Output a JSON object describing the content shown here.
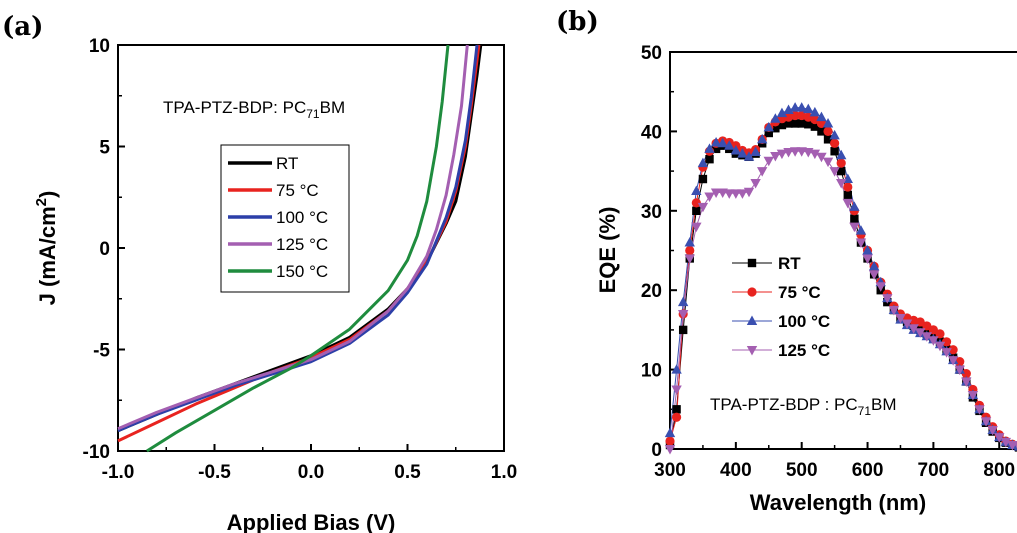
{
  "panels": {
    "a": {
      "label": "(a)",
      "annotation": "TPA-PTZ-BDP: PC",
      "annotation_sub": "71",
      "annotation_tail": "BM"
    },
    "b": {
      "label": "(b)",
      "annotation": "TPA-PTZ-BDP : PC",
      "annotation_sub": "71",
      "annotation_tail": "BM"
    }
  },
  "chart_data": [
    {
      "type": "line",
      "xlabel": "Applied Bias (V)",
      "ylabel": "J (mA/cm",
      "ylabel_sup": "2",
      "ylabel_tail": ")",
      "xlim": [
        -1.0,
        1.0
      ],
      "ylim": [
        -10,
        10
      ],
      "xticks": [
        "-1.0",
        "-0.5",
        "0.0",
        "0.5",
        "1.0"
      ],
      "yticks": [
        "10",
        "5",
        "0",
        "-5",
        "-10"
      ],
      "legend_position": "center",
      "series": [
        {
          "name": "RT",
          "color": "#000000",
          "x": [
            -1.0,
            -0.8,
            -0.6,
            -0.4,
            -0.2,
            0.0,
            0.2,
            0.4,
            0.5,
            0.6,
            0.7,
            0.75,
            0.8,
            0.83,
            0.86,
            0.88
          ],
          "y": [
            -9.0,
            -8.2,
            -7.4,
            -6.7,
            -6.0,
            -5.3,
            -4.4,
            -3.0,
            -2.0,
            -0.7,
            1.2,
            2.3,
            4.5,
            6.5,
            8.5,
            10.0
          ]
        },
        {
          "name": "75 °C",
          "color": "#e8231f",
          "x": [
            -1.0,
            -0.8,
            -0.6,
            -0.4,
            -0.2,
            0.0,
            0.2,
            0.4,
            0.5,
            0.6,
            0.7,
            0.75,
            0.8,
            0.83,
            0.87
          ],
          "y": [
            -9.5,
            -8.6,
            -7.7,
            -6.9,
            -6.1,
            -5.4,
            -4.5,
            -3.1,
            -2.0,
            -0.7,
            1.3,
            2.8,
            5.0,
            7.0,
            10.0
          ]
        },
        {
          "name": "100 °C",
          "color": "#2c3fa8",
          "x": [
            -1.0,
            -0.8,
            -0.6,
            -0.4,
            -0.2,
            0.0,
            0.2,
            0.4,
            0.5,
            0.6,
            0.7,
            0.75,
            0.8,
            0.83,
            0.86
          ],
          "y": [
            -9.0,
            -8.2,
            -7.5,
            -6.8,
            -6.2,
            -5.6,
            -4.7,
            -3.3,
            -2.2,
            -0.8,
            1.5,
            3.0,
            5.3,
            7.4,
            10.0
          ]
        },
        {
          "name": "125 °C",
          "color": "#a45fb1",
          "x": [
            -1.0,
            -0.8,
            -0.6,
            -0.4,
            -0.2,
            0.0,
            0.2,
            0.4,
            0.5,
            0.6,
            0.65,
            0.7,
            0.74,
            0.78,
            0.81
          ],
          "y": [
            -8.9,
            -8.1,
            -7.4,
            -6.7,
            -6.1,
            -5.5,
            -4.6,
            -3.1,
            -2.0,
            -0.4,
            0.9,
            2.6,
            4.6,
            7.0,
            10.0
          ]
        },
        {
          "name": "150 °C",
          "color": "#1f8c3e",
          "x": [
            -0.85,
            -0.7,
            -0.5,
            -0.3,
            -0.1,
            0.0,
            0.2,
            0.4,
            0.5,
            0.55,
            0.6,
            0.65,
            0.68,
            0.71
          ],
          "y": [
            -10.0,
            -9.1,
            -8.0,
            -6.9,
            -5.9,
            -5.3,
            -4.0,
            -2.1,
            -0.6,
            0.6,
            2.3,
            5.0,
            7.2,
            10.0
          ]
        }
      ]
    },
    {
      "type": "line",
      "xlabel": "Wavelength (nm)",
      "ylabel": "EQE (%)",
      "xlim": [
        300,
        830
      ],
      "ylim": [
        0,
        50
      ],
      "xticks": [
        "300",
        "400",
        "500",
        "600",
        "700",
        "800"
      ],
      "yticks": [
        "50",
        "40",
        "30",
        "20",
        "10",
        "0"
      ],
      "legend_position": "lower-left",
      "x": [
        300,
        310,
        320,
        330,
        340,
        350,
        360,
        370,
        380,
        390,
        400,
        410,
        420,
        430,
        440,
        450,
        460,
        470,
        480,
        490,
        500,
        510,
        520,
        530,
        540,
        550,
        560,
        570,
        580,
        590,
        600,
        610,
        620,
        630,
        640,
        650,
        660,
        670,
        680,
        690,
        700,
        710,
        720,
        730,
        740,
        750,
        760,
        770,
        780,
        790,
        800,
        810,
        820,
        830
      ],
      "series": [
        {
          "name": "RT",
          "color": "#000000",
          "marker": "square",
          "values": [
            0.5,
            5,
            15,
            24,
            30,
            34,
            36.5,
            37.8,
            38.2,
            37.8,
            37.2,
            37,
            36.8,
            37.2,
            38.5,
            39.8,
            40.4,
            40.8,
            41,
            41,
            41,
            40.9,
            40.6,
            40,
            39,
            37.5,
            35,
            32,
            29,
            26,
            24,
            22,
            20,
            18.5,
            17.5,
            16.5,
            16,
            15.5,
            15,
            14.5,
            14,
            13.5,
            12.5,
            11.5,
            10,
            8.5,
            6.5,
            4.8,
            3.3,
            2.2,
            1.4,
            0.8,
            0.4,
            0.2
          ]
        },
        {
          "name": "75 °C",
          "color": "#e8231f",
          "marker": "circle",
          "values": [
            1,
            4,
            17,
            25,
            31,
            35.5,
            37.5,
            38.5,
            38.8,
            38.6,
            38.2,
            37.6,
            37.3,
            37.7,
            39,
            40.5,
            41.2,
            41.6,
            41.8,
            42,
            42,
            41.8,
            41.5,
            41,
            40,
            38.5,
            36,
            33,
            30,
            27,
            25,
            23,
            21,
            19.5,
            18,
            17,
            16.5,
            16.2,
            16,
            15.5,
            15,
            14.5,
            13.5,
            12.5,
            11,
            9.5,
            7.5,
            5.5,
            4,
            2.8,
            1.8,
            1,
            0.6,
            0.3
          ]
        },
        {
          "name": "100 °C",
          "color": "#3a4fb0",
          "marker": "triangle",
          "values": [
            2,
            10,
            18.5,
            26,
            32.5,
            36,
            37.8,
            38.6,
            38.5,
            38.2,
            37.6,
            37.2,
            36.8,
            37.4,
            39,
            40.5,
            41.6,
            42.3,
            42.7,
            43,
            43,
            42.8,
            42.4,
            41.8,
            41,
            39.5,
            37,
            34,
            30.5,
            27.5,
            25,
            23,
            21,
            19,
            17.5,
            16.3,
            15.6,
            15,
            14.6,
            14.2,
            13.8,
            13.2,
            12.3,
            11.2,
            10,
            8.5,
            6.8,
            5,
            3.5,
            2.4,
            1.5,
            0.9,
            0.5,
            0.3
          ]
        },
        {
          "name": "125 °C",
          "color": "#a45fb1",
          "marker": "triangle-down",
          "values": [
            0,
            7.5,
            17,
            24,
            28,
            30.5,
            31.8,
            32.3,
            32.3,
            32.2,
            32.2,
            32.2,
            32.4,
            33.5,
            35,
            36.3,
            36.9,
            37.2,
            37.4,
            37.5,
            37.5,
            37.4,
            37.2,
            36.8,
            36.2,
            35,
            33.5,
            31,
            28,
            26,
            24,
            22,
            20.5,
            19,
            17.5,
            16.5,
            15.8,
            15.2,
            14.7,
            14.2,
            13.7,
            13,
            12.2,
            11.2,
            10,
            8.5,
            6.8,
            5,
            3.5,
            2.4,
            1.5,
            0.9,
            0.5,
            0.3
          ]
        }
      ]
    }
  ]
}
